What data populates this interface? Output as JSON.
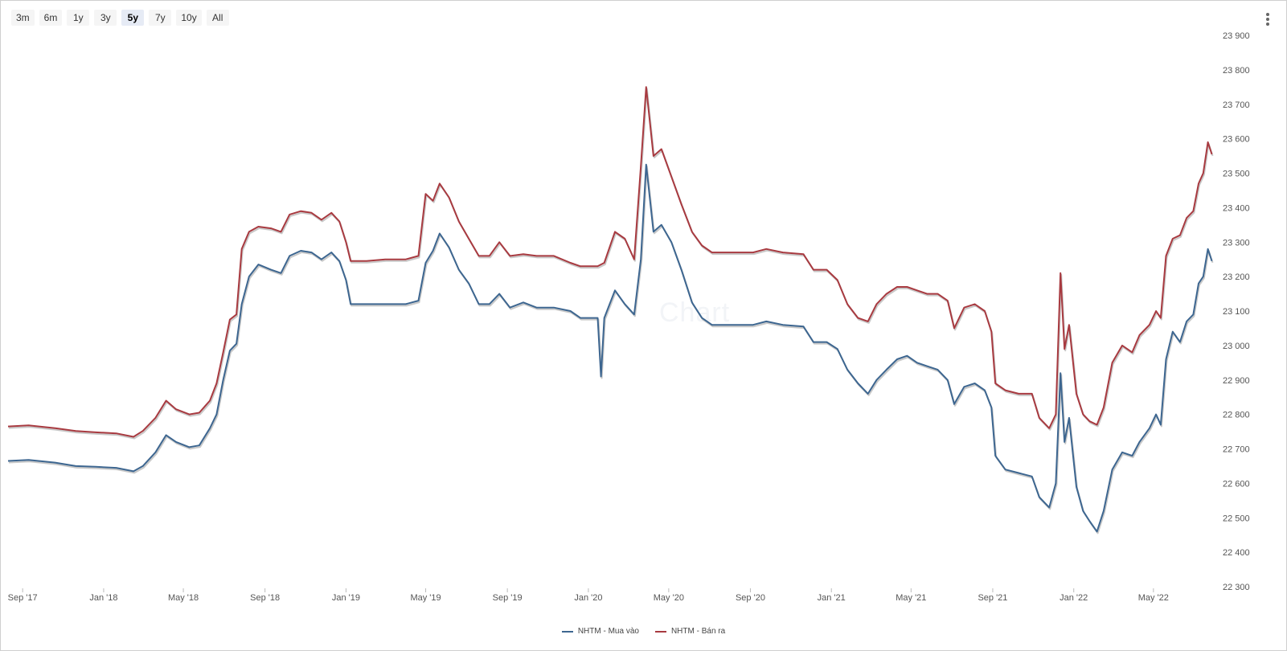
{
  "toolbar": {
    "ranges": [
      "3m",
      "6m",
      "1y",
      "3y",
      "5y",
      "7y",
      "10y",
      "All"
    ],
    "active": "5y"
  },
  "watermark": "Chart",
  "colors": {
    "buy": "#3d6690",
    "sell": "#a83a40",
    "shadow": "#c8c8c8"
  },
  "chart_data": {
    "type": "line",
    "xlabel": "",
    "ylabel": "",
    "ylim": [
      22300,
      23900
    ],
    "yticks": [
      22300,
      22400,
      22500,
      22600,
      22700,
      22800,
      22900,
      23000,
      23100,
      23200,
      23300,
      23400,
      23500,
      23600,
      23700,
      23800,
      23900
    ],
    "ytick_labels": [
      "22 300",
      "22 400",
      "22 500",
      "22 600",
      "22 700",
      "22 800",
      "22 900",
      "23 000",
      "23 100",
      "23 200",
      "23 300",
      "23 400",
      "23 500",
      "23 600",
      "23 700",
      "23 800",
      "23 900"
    ],
    "xlim": [
      "2017-08-10",
      "2022-07-31"
    ],
    "xticks": [
      "2017-09-01",
      "2018-01-01",
      "2018-05-01",
      "2018-09-01",
      "2019-01-01",
      "2019-05-01",
      "2019-09-01",
      "2020-01-01",
      "2020-05-01",
      "2020-09-01",
      "2021-01-01",
      "2021-05-01",
      "2021-09-01",
      "2022-01-01",
      "2022-05-01"
    ],
    "xtick_labels": [
      "Sep '17",
      "Jan '18",
      "May '18",
      "Sep '18",
      "Jan '19",
      "May '19",
      "Sep '19",
      "Jan '20",
      "May '20",
      "Sep '20",
      "Jan '21",
      "May '21",
      "Sep '21",
      "Jan '22",
      "May '22"
    ],
    "grid": false,
    "legend_position": "bottom-center",
    "series": [
      {
        "name": "NHTM - Mua vào",
        "color": "#3d6690",
        "points": [
          [
            "2017-08-10",
            22665
          ],
          [
            "2017-09-10",
            22668
          ],
          [
            "2017-10-20",
            22660
          ],
          [
            "2017-11-20",
            22650
          ],
          [
            "2017-12-20",
            22648
          ],
          [
            "2018-01-20",
            22645
          ],
          [
            "2018-02-15",
            22635
          ],
          [
            "2018-03-01",
            22650
          ],
          [
            "2018-03-20",
            22690
          ],
          [
            "2018-04-05",
            22740
          ],
          [
            "2018-04-20",
            22720
          ],
          [
            "2018-05-10",
            22705
          ],
          [
            "2018-05-25",
            22710
          ],
          [
            "2018-06-10",
            22760
          ],
          [
            "2018-06-20",
            22800
          ],
          [
            "2018-06-30",
            22900
          ],
          [
            "2018-07-10",
            22985
          ],
          [
            "2018-07-20",
            23005
          ],
          [
            "2018-07-28",
            23120
          ],
          [
            "2018-08-08",
            23200
          ],
          [
            "2018-08-22",
            23235
          ],
          [
            "2018-09-10",
            23220
          ],
          [
            "2018-09-25",
            23210
          ],
          [
            "2018-10-08",
            23260
          ],
          [
            "2018-10-25",
            23275
          ],
          [
            "2018-11-10",
            23270
          ],
          [
            "2018-11-25",
            23250
          ],
          [
            "2018-12-10",
            23270
          ],
          [
            "2018-12-22",
            23245
          ],
          [
            "2019-01-01",
            23190
          ],
          [
            "2019-01-08",
            23120
          ],
          [
            "2019-02-01",
            23120
          ],
          [
            "2019-03-01",
            23120
          ],
          [
            "2019-04-01",
            23120
          ],
          [
            "2019-04-20",
            23130
          ],
          [
            "2019-05-01",
            23240
          ],
          [
            "2019-05-12",
            23275
          ],
          [
            "2019-05-22",
            23325
          ],
          [
            "2019-06-05",
            23285
          ],
          [
            "2019-06-20",
            23220
          ],
          [
            "2019-07-05",
            23180
          ],
          [
            "2019-07-20",
            23120
          ],
          [
            "2019-08-05",
            23120
          ],
          [
            "2019-08-20",
            23150
          ],
          [
            "2019-09-05",
            23110
          ],
          [
            "2019-09-25",
            23125
          ],
          [
            "2019-10-15",
            23110
          ],
          [
            "2019-11-10",
            23110
          ],
          [
            "2019-12-05",
            23100
          ],
          [
            "2019-12-20",
            23080
          ],
          [
            "2020-01-15",
            23080
          ],
          [
            "2020-01-20",
            22910
          ],
          [
            "2020-01-25",
            23080
          ],
          [
            "2020-02-10",
            23160
          ],
          [
            "2020-02-25",
            23120
          ],
          [
            "2020-03-10",
            23090
          ],
          [
            "2020-03-20",
            23250
          ],
          [
            "2020-03-28",
            23525
          ],
          [
            "2020-04-08",
            23330
          ],
          [
            "2020-04-20",
            23350
          ],
          [
            "2020-05-05",
            23300
          ],
          [
            "2020-05-20",
            23220
          ],
          [
            "2020-06-05",
            23125
          ],
          [
            "2020-06-20",
            23080
          ],
          [
            "2020-07-05",
            23060
          ],
          [
            "2020-08-05",
            23060
          ],
          [
            "2020-09-05",
            23060
          ],
          [
            "2020-09-25",
            23070
          ],
          [
            "2020-10-20",
            23060
          ],
          [
            "2020-11-20",
            23055
          ],
          [
            "2020-12-05",
            23010
          ],
          [
            "2020-12-25",
            23010
          ],
          [
            "2021-01-10",
            22990
          ],
          [
            "2021-01-25",
            22930
          ],
          [
            "2021-02-10",
            22890
          ],
          [
            "2021-02-25",
            22860
          ],
          [
            "2021-03-10",
            22900
          ],
          [
            "2021-03-25",
            22930
          ],
          [
            "2021-04-10",
            22960
          ],
          [
            "2021-04-25",
            22970
          ],
          [
            "2021-05-10",
            22950
          ],
          [
            "2021-05-25",
            22940
          ],
          [
            "2021-06-10",
            22930
          ],
          [
            "2021-06-25",
            22900
          ],
          [
            "2021-07-05",
            22830
          ],
          [
            "2021-07-20",
            22880
          ],
          [
            "2021-08-05",
            22890
          ],
          [
            "2021-08-20",
            22870
          ],
          [
            "2021-08-30",
            22820
          ],
          [
            "2021-09-05",
            22680
          ],
          [
            "2021-09-20",
            22640
          ],
          [
            "2021-10-10",
            22630
          ],
          [
            "2021-10-30",
            22620
          ],
          [
            "2021-11-10",
            22560
          ],
          [
            "2021-11-25",
            22530
          ],
          [
            "2021-12-05",
            22600
          ],
          [
            "2021-12-12",
            22920
          ],
          [
            "2021-12-18",
            22720
          ],
          [
            "2021-12-25",
            22790
          ],
          [
            "2022-01-05",
            22590
          ],
          [
            "2022-01-15",
            22520
          ],
          [
            "2022-01-25",
            22490
          ],
          [
            "2022-02-05",
            22460
          ],
          [
            "2022-02-15",
            22520
          ],
          [
            "2022-02-28",
            22640
          ],
          [
            "2022-03-15",
            22690
          ],
          [
            "2022-03-30",
            22680
          ],
          [
            "2022-04-10",
            22720
          ],
          [
            "2022-04-25",
            22760
          ],
          [
            "2022-05-05",
            22800
          ],
          [
            "2022-05-12",
            22770
          ],
          [
            "2022-05-20",
            22960
          ],
          [
            "2022-05-30",
            23040
          ],
          [
            "2022-06-10",
            23010
          ],
          [
            "2022-06-20",
            23070
          ],
          [
            "2022-06-30",
            23090
          ],
          [
            "2022-07-08",
            23180
          ],
          [
            "2022-07-15",
            23200
          ],
          [
            "2022-07-22",
            23280
          ],
          [
            "2022-07-28",
            23245
          ]
        ]
      },
      {
        "name": "NHTM - Bán ra",
        "color": "#a83a40",
        "points": [
          [
            "2017-08-10",
            22765
          ],
          [
            "2017-09-10",
            22768
          ],
          [
            "2017-10-20",
            22760
          ],
          [
            "2017-11-20",
            22752
          ],
          [
            "2017-12-20",
            22748
          ],
          [
            "2018-01-20",
            22745
          ],
          [
            "2018-02-15",
            22735
          ],
          [
            "2018-03-01",
            22752
          ],
          [
            "2018-03-20",
            22790
          ],
          [
            "2018-04-05",
            22840
          ],
          [
            "2018-04-20",
            22815
          ],
          [
            "2018-05-10",
            22800
          ],
          [
            "2018-05-25",
            22805
          ],
          [
            "2018-06-10",
            22840
          ],
          [
            "2018-06-20",
            22890
          ],
          [
            "2018-06-30",
            22980
          ],
          [
            "2018-07-10",
            23075
          ],
          [
            "2018-07-20",
            23090
          ],
          [
            "2018-07-28",
            23280
          ],
          [
            "2018-08-08",
            23330
          ],
          [
            "2018-08-22",
            23345
          ],
          [
            "2018-09-10",
            23340
          ],
          [
            "2018-09-25",
            23330
          ],
          [
            "2018-10-08",
            23380
          ],
          [
            "2018-10-25",
            23390
          ],
          [
            "2018-11-10",
            23385
          ],
          [
            "2018-11-25",
            23365
          ],
          [
            "2018-12-10",
            23385
          ],
          [
            "2018-12-22",
            23360
          ],
          [
            "2019-01-01",
            23300
          ],
          [
            "2019-01-08",
            23245
          ],
          [
            "2019-02-01",
            23245
          ],
          [
            "2019-03-01",
            23250
          ],
          [
            "2019-04-01",
            23250
          ],
          [
            "2019-04-20",
            23260
          ],
          [
            "2019-05-01",
            23440
          ],
          [
            "2019-05-12",
            23420
          ],
          [
            "2019-05-22",
            23470
          ],
          [
            "2019-06-05",
            23430
          ],
          [
            "2019-06-20",
            23360
          ],
          [
            "2019-07-05",
            23310
          ],
          [
            "2019-07-20",
            23260
          ],
          [
            "2019-08-05",
            23260
          ],
          [
            "2019-08-20",
            23300
          ],
          [
            "2019-09-05",
            23260
          ],
          [
            "2019-09-25",
            23265
          ],
          [
            "2019-10-15",
            23260
          ],
          [
            "2019-11-10",
            23260
          ],
          [
            "2019-12-05",
            23240
          ],
          [
            "2019-12-20",
            23230
          ],
          [
            "2020-01-15",
            23230
          ],
          [
            "2020-01-25",
            23240
          ],
          [
            "2020-02-10",
            23330
          ],
          [
            "2020-02-25",
            23310
          ],
          [
            "2020-03-10",
            23250
          ],
          [
            "2020-03-20",
            23520
          ],
          [
            "2020-03-28",
            23750
          ],
          [
            "2020-04-08",
            23550
          ],
          [
            "2020-04-20",
            23570
          ],
          [
            "2020-05-05",
            23490
          ],
          [
            "2020-05-20",
            23410
          ],
          [
            "2020-06-05",
            23330
          ],
          [
            "2020-06-20",
            23290
          ],
          [
            "2020-07-05",
            23270
          ],
          [
            "2020-08-05",
            23270
          ],
          [
            "2020-09-05",
            23270
          ],
          [
            "2020-09-25",
            23280
          ],
          [
            "2020-10-20",
            23270
          ],
          [
            "2020-11-20",
            23265
          ],
          [
            "2020-12-05",
            23220
          ],
          [
            "2020-12-25",
            23220
          ],
          [
            "2021-01-10",
            23190
          ],
          [
            "2021-01-25",
            23120
          ],
          [
            "2021-02-10",
            23080
          ],
          [
            "2021-02-25",
            23070
          ],
          [
            "2021-03-10",
            23120
          ],
          [
            "2021-03-25",
            23150
          ],
          [
            "2021-04-10",
            23170
          ],
          [
            "2021-04-25",
            23170
          ],
          [
            "2021-05-10",
            23160
          ],
          [
            "2021-05-25",
            23150
          ],
          [
            "2021-06-10",
            23150
          ],
          [
            "2021-06-25",
            23130
          ],
          [
            "2021-07-05",
            23050
          ],
          [
            "2021-07-20",
            23110
          ],
          [
            "2021-08-05",
            23120
          ],
          [
            "2021-08-20",
            23100
          ],
          [
            "2021-08-30",
            23040
          ],
          [
            "2021-09-05",
            22890
          ],
          [
            "2021-09-20",
            22870
          ],
          [
            "2021-10-10",
            22860
          ],
          [
            "2021-10-30",
            22860
          ],
          [
            "2021-11-10",
            22790
          ],
          [
            "2021-11-25",
            22760
          ],
          [
            "2021-12-05",
            22800
          ],
          [
            "2021-12-12",
            23210
          ],
          [
            "2021-12-18",
            22990
          ],
          [
            "2021-12-25",
            23060
          ],
          [
            "2022-01-05",
            22860
          ],
          [
            "2022-01-15",
            22800
          ],
          [
            "2022-01-25",
            22780
          ],
          [
            "2022-02-05",
            22770
          ],
          [
            "2022-02-15",
            22820
          ],
          [
            "2022-02-28",
            22950
          ],
          [
            "2022-03-15",
            23000
          ],
          [
            "2022-03-30",
            22980
          ],
          [
            "2022-04-10",
            23030
          ],
          [
            "2022-04-25",
            23060
          ],
          [
            "2022-05-05",
            23100
          ],
          [
            "2022-05-12",
            23080
          ],
          [
            "2022-05-20",
            23260
          ],
          [
            "2022-05-30",
            23310
          ],
          [
            "2022-06-10",
            23320
          ],
          [
            "2022-06-20",
            23370
          ],
          [
            "2022-06-30",
            23390
          ],
          [
            "2022-07-08",
            23470
          ],
          [
            "2022-07-15",
            23500
          ],
          [
            "2022-07-22",
            23590
          ],
          [
            "2022-07-28",
            23555
          ]
        ]
      }
    ]
  }
}
